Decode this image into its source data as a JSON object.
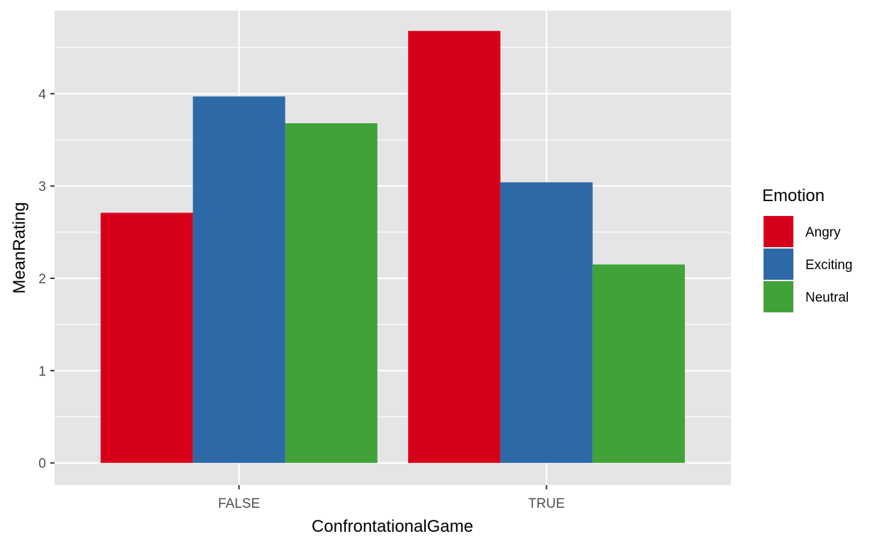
{
  "chart_data": {
    "type": "bar",
    "xlabel": "ConfrontationalGame",
    "ylabel": "MeanRating",
    "categories": [
      "FALSE",
      "TRUE"
    ],
    "ylim": [
      -0.24,
      4.9
    ],
    "yticks": [
      0,
      1,
      2,
      3,
      4
    ],
    "grid": true,
    "legend": {
      "title": "Emotion",
      "position": "right"
    },
    "series": [
      {
        "name": "Angry",
        "color": "#D7001A",
        "values": [
          2.71,
          4.68
        ]
      },
      {
        "name": "Exciting",
        "color": "#2D69A6",
        "values": [
          3.97,
          3.04
        ]
      },
      {
        "name": "Neutral",
        "color": "#42A23A",
        "values": [
          3.68,
          2.15
        ]
      }
    ]
  }
}
